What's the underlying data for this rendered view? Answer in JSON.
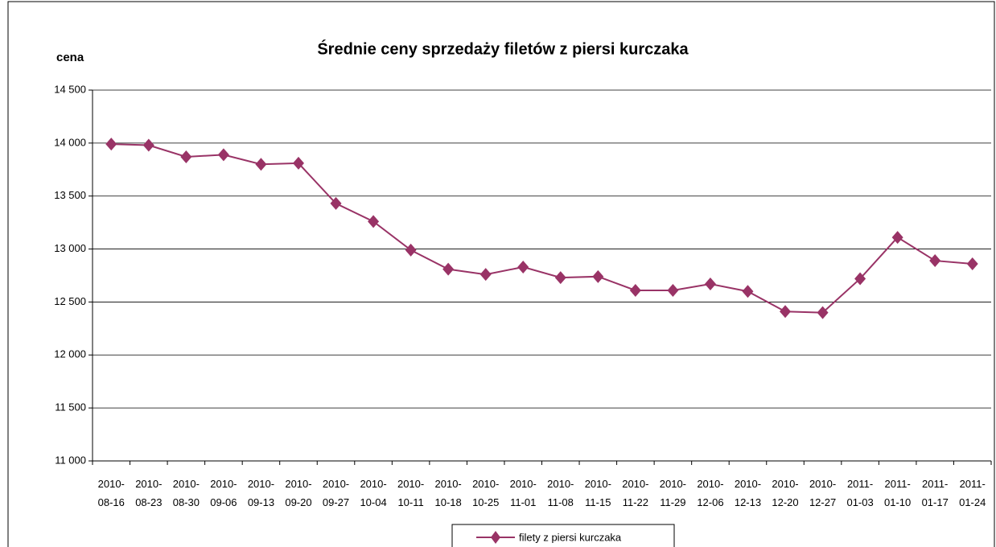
{
  "chart_data": {
    "type": "line",
    "title": "Średnie ceny sprzedaży filetów z piersi kurczaka",
    "y_label": "cena",
    "categories": [
      "2010-08-16",
      "2010-08-23",
      "2010-08-30",
      "2010-09-06",
      "2010-09-13",
      "2010-09-20",
      "2010-09-27",
      "2010-10-04",
      "2010-10-11",
      "2010-10-18",
      "2010-10-25",
      "2010-11-01",
      "2010-11-08",
      "2010-11-15",
      "2010-11-22",
      "2010-11-29",
      "2010-12-06",
      "2010-12-13",
      "2010-12-20",
      "2010-12-27",
      "2011-01-03",
      "2011-01-10",
      "2011-01-17",
      "2011-01-24"
    ],
    "series": [
      {
        "name": "filety z piersi kurczaka",
        "color": "#993366",
        "values": [
          13990,
          13980,
          13870,
          13890,
          13800,
          13810,
          13430,
          13260,
          12990,
          12810,
          12760,
          12830,
          12730,
          12740,
          12610,
          12610,
          12670,
          12600,
          12410,
          12400,
          12720,
          13110,
          12890,
          12860
        ]
      }
    ],
    "ylim": [
      11000,
      14500
    ],
    "yticks": [
      {
        "value": 11000,
        "label": "11 000"
      },
      {
        "value": 11500,
        "label": "11 500"
      },
      {
        "value": 12000,
        "label": "12 000"
      },
      {
        "value": 12500,
        "label": "12 500"
      },
      {
        "value": 13000,
        "label": "13 000"
      },
      {
        "value": 13500,
        "label": "13 500"
      },
      {
        "value": 14000,
        "label": "14 000"
      },
      {
        "value": 14500,
        "label": "14 500"
      }
    ],
    "grid": true,
    "legend": "bottom"
  }
}
